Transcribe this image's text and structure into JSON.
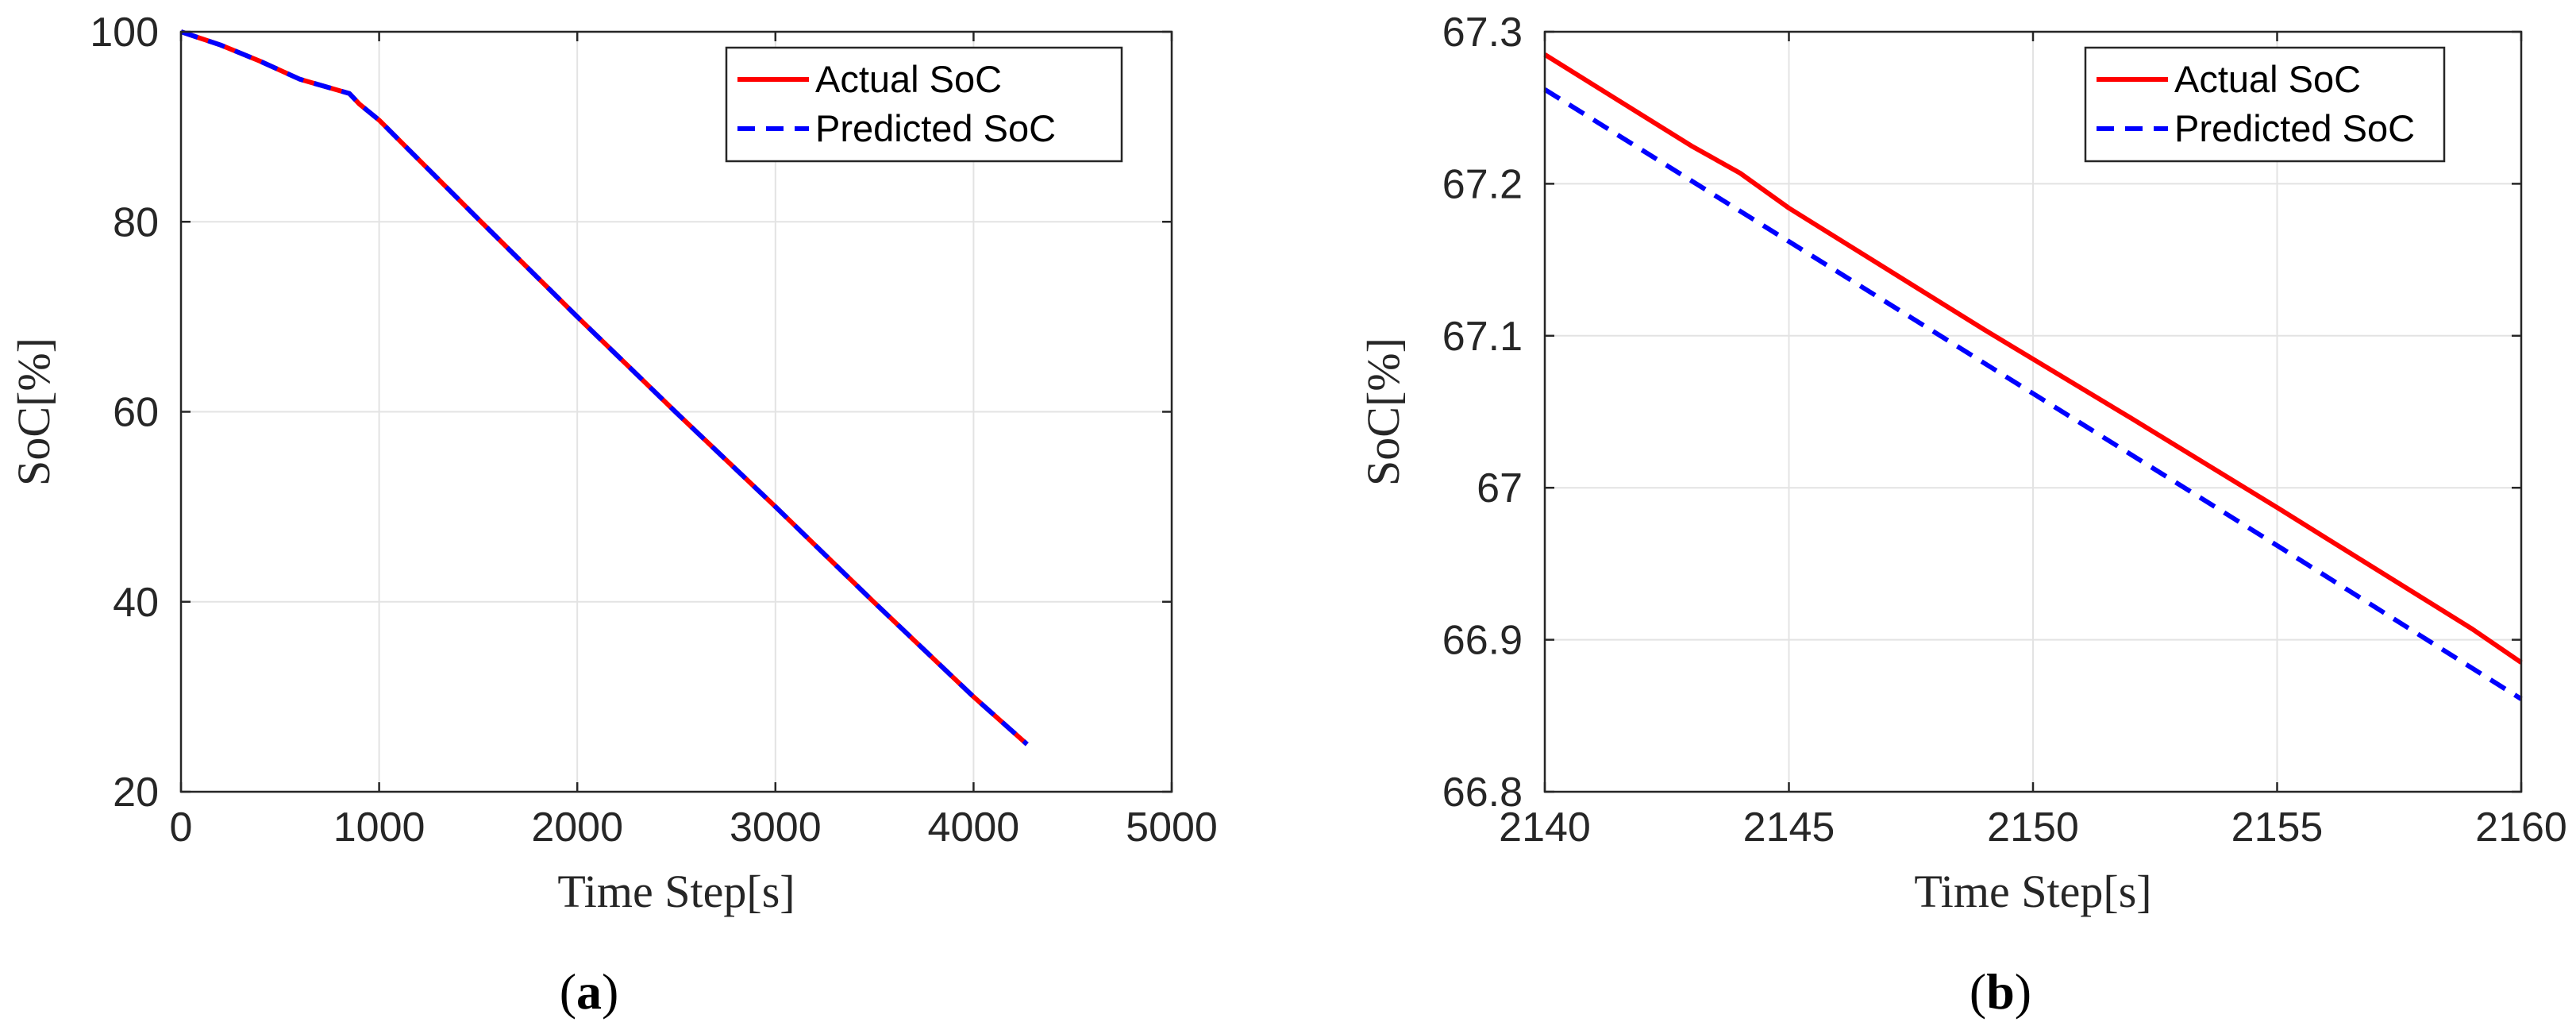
{
  "chart_data": [
    {
      "type": "line",
      "panel": "a",
      "caption": "a",
      "xlabel": "Time Step[s]",
      "ylabel": "SoC[%]",
      "xlim": [
        0,
        5000
      ],
      "ylim": [
        20,
        100
      ],
      "xticks": [
        "0",
        "1000",
        "2000",
        "3000",
        "4000",
        "5000"
      ],
      "yticks": [
        "20",
        "40",
        "60",
        "80",
        "100"
      ],
      "grid": true,
      "legend_position": "top-right",
      "series": [
        {
          "name": "Actual SoC",
          "color": "#ff0000",
          "style": "solid",
          "x": [
            0,
            200,
            400,
            600,
            850,
            900,
            1000,
            1500,
            2000,
            2500,
            3000,
            3500,
            4000,
            4270
          ],
          "y": [
            100,
            98.6,
            96.9,
            95.0,
            93.5,
            92.4,
            90.7,
            80.3,
            70.0,
            59.9,
            50.0,
            39.9,
            30.0,
            25.0
          ]
        },
        {
          "name": "Predicted SoC",
          "color": "#0000ff",
          "style": "dashed",
          "x": [
            0,
            200,
            400,
            600,
            850,
            900,
            1000,
            1500,
            2000,
            2500,
            3000,
            3500,
            4000,
            4270
          ],
          "y": [
            100,
            98.6,
            96.9,
            95.0,
            93.5,
            92.4,
            90.7,
            80.3,
            70.0,
            59.9,
            50.0,
            39.9,
            30.0,
            25.0
          ]
        }
      ]
    },
    {
      "type": "line",
      "panel": "b",
      "caption": "b",
      "xlabel": "Time Step[s]",
      "ylabel": "SoC[%]",
      "xlim": [
        2140,
        2160
      ],
      "ylim": [
        66.8,
        67.3
      ],
      "xticks": [
        "2140",
        "2145",
        "2150",
        "2155",
        "2160"
      ],
      "yticks": [
        "66.8",
        "66.9",
        "67",
        "67.1",
        "67.2",
        "67.3"
      ],
      "grid": true,
      "legend_position": "top-right",
      "series": [
        {
          "name": "Actual SoC",
          "color": "#ff0000",
          "style": "solid",
          "x": [
            2140,
            2143,
            2144,
            2145,
            2147,
            2149,
            2152,
            2155,
            2156,
            2158,
            2159,
            2160
          ],
          "y": [
            67.285,
            67.225,
            67.207,
            67.184,
            67.144,
            67.104,
            67.046,
            66.987,
            66.967,
            66.927,
            66.907,
            66.885
          ]
        },
        {
          "name": "Predicted SoC",
          "color": "#0000ff",
          "style": "dashed",
          "x": [
            2140,
            2145,
            2150,
            2155,
            2160
          ],
          "y": [
            67.262,
            67.162,
            67.062,
            66.962,
            66.861
          ]
        }
      ]
    }
  ]
}
